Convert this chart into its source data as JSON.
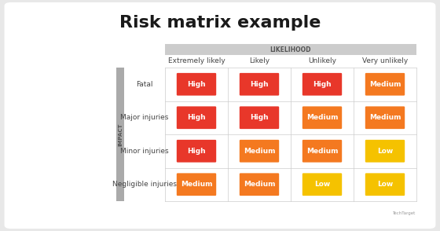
{
  "title": "Risk matrix example",
  "likelihood_label": "LIKELIHOOD",
  "impact_label": "IMPACT",
  "col_headers": [
    "Extremely likely",
    "Likely",
    "Unlikely",
    "Very unlikely"
  ],
  "row_headers": [
    "Fatal",
    "Major injuries",
    "Minor injuries",
    "Negligible injuries"
  ],
  "matrix": [
    [
      "High",
      "High",
      "High",
      "Medium"
    ],
    [
      "High",
      "High",
      "Medium",
      "Medium"
    ],
    [
      "High",
      "Medium",
      "Medium",
      "Low"
    ],
    [
      "Medium",
      "Medium",
      "Low",
      "Low"
    ]
  ],
  "colors": {
    "High": "#e8372a",
    "Medium": "#f47920",
    "Low": "#f5c200"
  },
  "cell_text_color": "#ffffff",
  "low_text_color": "#ffffff",
  "title_color": "#1a1a1a",
  "header_text_color": "#444444",
  "likelihood_bg": "#cccccc",
  "impact_bar_color": "#aaaaaa",
  "background_color": "#e8e8e8",
  "panel_color": "#ffffff",
  "grid_line_color": "#cccccc",
  "title_fontsize": 16,
  "col_header_fontsize": 6.5,
  "row_header_fontsize": 6.5,
  "cell_fontsize": 6.5,
  "likelihood_fontsize": 5.5,
  "impact_fontsize": 5,
  "watermark_fontsize": 4
}
